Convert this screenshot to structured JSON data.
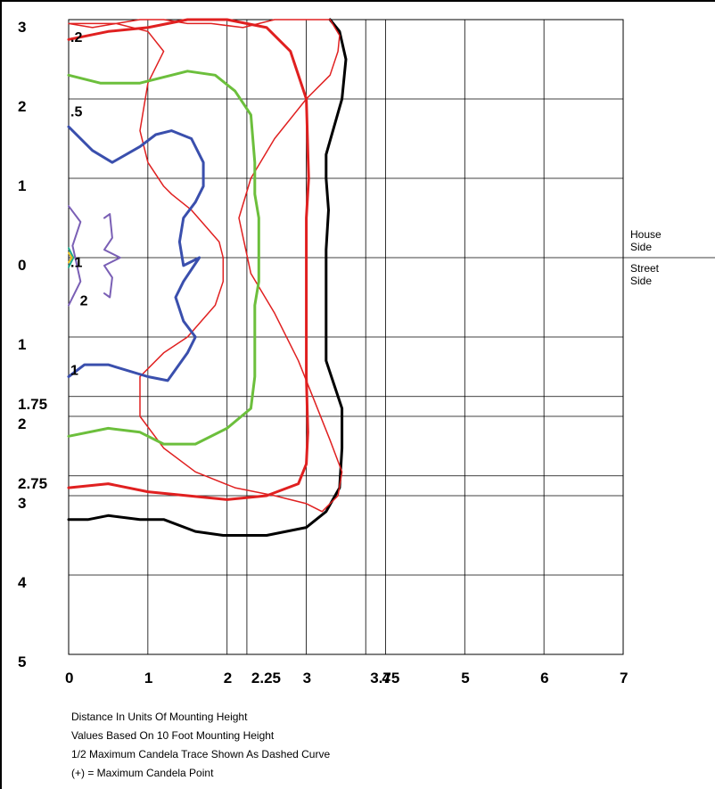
{
  "chart_data": {
    "type": "line",
    "title": "",
    "xlabel": "",
    "ylabel": "",
    "grid": true,
    "x_tick_labels": [
      "0",
      "1",
      "2",
      "2.25",
      "3",
      "3.75",
      "4",
      "5",
      "6",
      "7"
    ],
    "x_tick_values": [
      0,
      1,
      2,
      2.25,
      3,
      3.75,
      4,
      5,
      6,
      7
    ],
    "y_upper_tick_labels": [
      "3",
      "2",
      "1",
      "0"
    ],
    "y_upper_tick_values": [
      3,
      2,
      1,
      0
    ],
    "y_lower_tick_labels": [
      "1",
      "1.75",
      "2",
      "2.75",
      "3",
      "4",
      "5"
    ],
    "y_lower_tick_values": [
      1,
      1.75,
      2,
      2.75,
      3,
      4,
      5
    ],
    "xlim": [
      0,
      7
    ],
    "ylim": [
      -5,
      3
    ],
    "side_labels": {
      "house": "House\nSide",
      "street": "Street\nSide"
    },
    "contour_labels": [
      {
        "text": ".2",
        "x": 0.0,
        "y": 2.72
      },
      {
        "text": ".5",
        "x": 0.0,
        "y": 1.78
      },
      {
        "text": ".1",
        "x": 0.0,
        "y": -0.12
      },
      {
        "text": "2",
        "x": 0.12,
        "y": -0.6
      },
      {
        "text": "1",
        "x": 0.0,
        "y": -1.48
      }
    ],
    "series": [
      {
        "color": "#000000",
        "width": 3,
        "x": [
          3.3,
          3.42,
          3.5,
          3.45,
          3.25,
          3.25,
          3.28,
          3.25,
          3.25,
          3.25,
          3.35,
          3.45,
          3.45,
          3.42,
          3.25,
          3.0,
          2.5,
          1.95,
          1.6,
          1.2,
          0.9,
          0.5,
          0.25,
          0.0
        ],
        "y": [
          3.0,
          2.85,
          2.5,
          2.0,
          1.3,
          1.0,
          0.6,
          0.1,
          -0.5,
          -1.3,
          -1.6,
          -1.9,
          -2.4,
          -2.9,
          -3.2,
          -3.4,
          -3.5,
          -3.5,
          -3.45,
          -3.3,
          -3.3,
          -3.25,
          -3.3,
          -3.3
        ]
      },
      {
        "color": "#e02020",
        "width": 3,
        "x": [
          0.0,
          0.5,
          1.0,
          1.5,
          2.0,
          2.5,
          2.8,
          3.0,
          3.03,
          3.0,
          3.0,
          3.0,
          3.02,
          3.0,
          2.9,
          2.5,
          2.0,
          1.5,
          1.0,
          0.5,
          0.0
        ],
        "y": [
          2.75,
          2.85,
          2.9,
          3.0,
          3.0,
          2.9,
          2.6,
          2.0,
          1.0,
          0.5,
          -0.5,
          -1.5,
          -2.2,
          -2.6,
          -2.85,
          -3.0,
          -3.05,
          -3.0,
          -2.95,
          -2.85,
          -2.9
        ]
      },
      {
        "color": "#e02020",
        "width": 1.5,
        "x": [
          0.0,
          0.6,
          1.0,
          1.2,
          1.0,
          0.9,
          1.0,
          1.2,
          1.3,
          1.55,
          1.9,
          1.95,
          1.95,
          1.85,
          1.5,
          1.2,
          0.9,
          0.9,
          1.2,
          1.6,
          2.1,
          2.6,
          3.0,
          3.2,
          3.4,
          3.45,
          3.3,
          3.1,
          2.9,
          2.6,
          2.3,
          2.15,
          2.3,
          2.6,
          3.0,
          3.3,
          3.4,
          3.42,
          3.3,
          3.0,
          2.6,
          2.2,
          1.8,
          1.5,
          1.2,
          0.9,
          0.6,
          0.3,
          0.0
        ],
        "y": [
          2.95,
          2.95,
          2.85,
          2.6,
          2.2,
          1.6,
          1.2,
          0.9,
          0.8,
          0.6,
          0.2,
          0.0,
          -0.3,
          -0.6,
          -1.0,
          -1.2,
          -1.5,
          -2.0,
          -2.4,
          -2.7,
          -2.9,
          -3.0,
          -3.1,
          -3.2,
          -3.0,
          -2.7,
          -2.3,
          -1.8,
          -1.3,
          -0.7,
          -0.2,
          0.5,
          1.0,
          1.5,
          2.0,
          2.3,
          2.6,
          2.8,
          3.0,
          3.0,
          3.0,
          2.9,
          2.95,
          2.95,
          3.0,
          3.0,
          2.95,
          2.9,
          2.95
        ]
      },
      {
        "color": "#6cbf3c",
        "width": 3,
        "x": [
          0.0,
          0.4,
          0.9,
          1.3,
          1.5,
          1.85,
          2.1,
          2.3,
          2.35,
          2.35,
          2.4,
          2.4,
          2.35,
          2.35,
          2.35,
          2.3,
          2.0,
          1.6,
          1.2,
          0.9,
          0.5,
          0.0
        ],
        "y": [
          2.3,
          2.2,
          2.2,
          2.3,
          2.35,
          2.3,
          2.1,
          1.8,
          1.2,
          0.8,
          0.5,
          -0.3,
          -0.6,
          -1.0,
          -1.5,
          -1.9,
          -2.15,
          -2.35,
          -2.35,
          -2.2,
          -2.15,
          -2.25
        ]
      },
      {
        "color": "#3a4fad",
        "width": 3,
        "x": [
          0.0,
          0.3,
          0.55,
          0.9,
          1.1,
          1.3,
          1.55,
          1.7,
          1.7,
          1.6,
          1.45,
          1.4,
          1.45,
          1.65,
          1.45,
          1.35,
          1.45,
          1.6,
          1.5,
          1.25,
          1.0,
          0.5,
          0.2,
          0.0
        ],
        "y": [
          1.65,
          1.35,
          1.2,
          1.4,
          1.55,
          1.6,
          1.5,
          1.2,
          0.9,
          0.7,
          0.5,
          0.2,
          -0.1,
          0.0,
          -0.3,
          -0.5,
          -0.8,
          -1.0,
          -1.2,
          -1.55,
          -1.5,
          -1.35,
          -1.35,
          -1.5
        ]
      },
      {
        "color": "#7a5fb5",
        "width": 2,
        "x": [
          0.0,
          0.15,
          0.05,
          0.15,
          0.0
        ],
        "y": [
          0.65,
          0.45,
          0.15,
          -0.3,
          -0.6
        ]
      },
      {
        "color": "#7a5fb5",
        "width": 2,
        "x": [
          0.45,
          0.52,
          0.55,
          0.45,
          0.65,
          0.45,
          0.55,
          0.52,
          0.45
        ],
        "y": [
          0.5,
          0.55,
          0.25,
          0.1,
          0.0,
          -0.1,
          -0.25,
          -0.5,
          -0.45
        ]
      },
      {
        "color": "#1faa8c",
        "width": 2,
        "x": [
          0.0,
          0.06,
          0.0
        ],
        "y": [
          0.12,
          0.0,
          -0.12
        ]
      },
      {
        "color": "#e8c020",
        "width": 2,
        "x": [
          0.0,
          0.04,
          0.0
        ],
        "y": [
          0.06,
          0.0,
          -0.06
        ]
      }
    ]
  },
  "notes": [
    "Distance In Units Of Mounting Height",
    "Values Based On 10 Foot Mounting Height",
    "1/2 Maximum Candela Trace Shown As Dashed Curve",
    "(+) = Maximum Candela Point"
  ]
}
